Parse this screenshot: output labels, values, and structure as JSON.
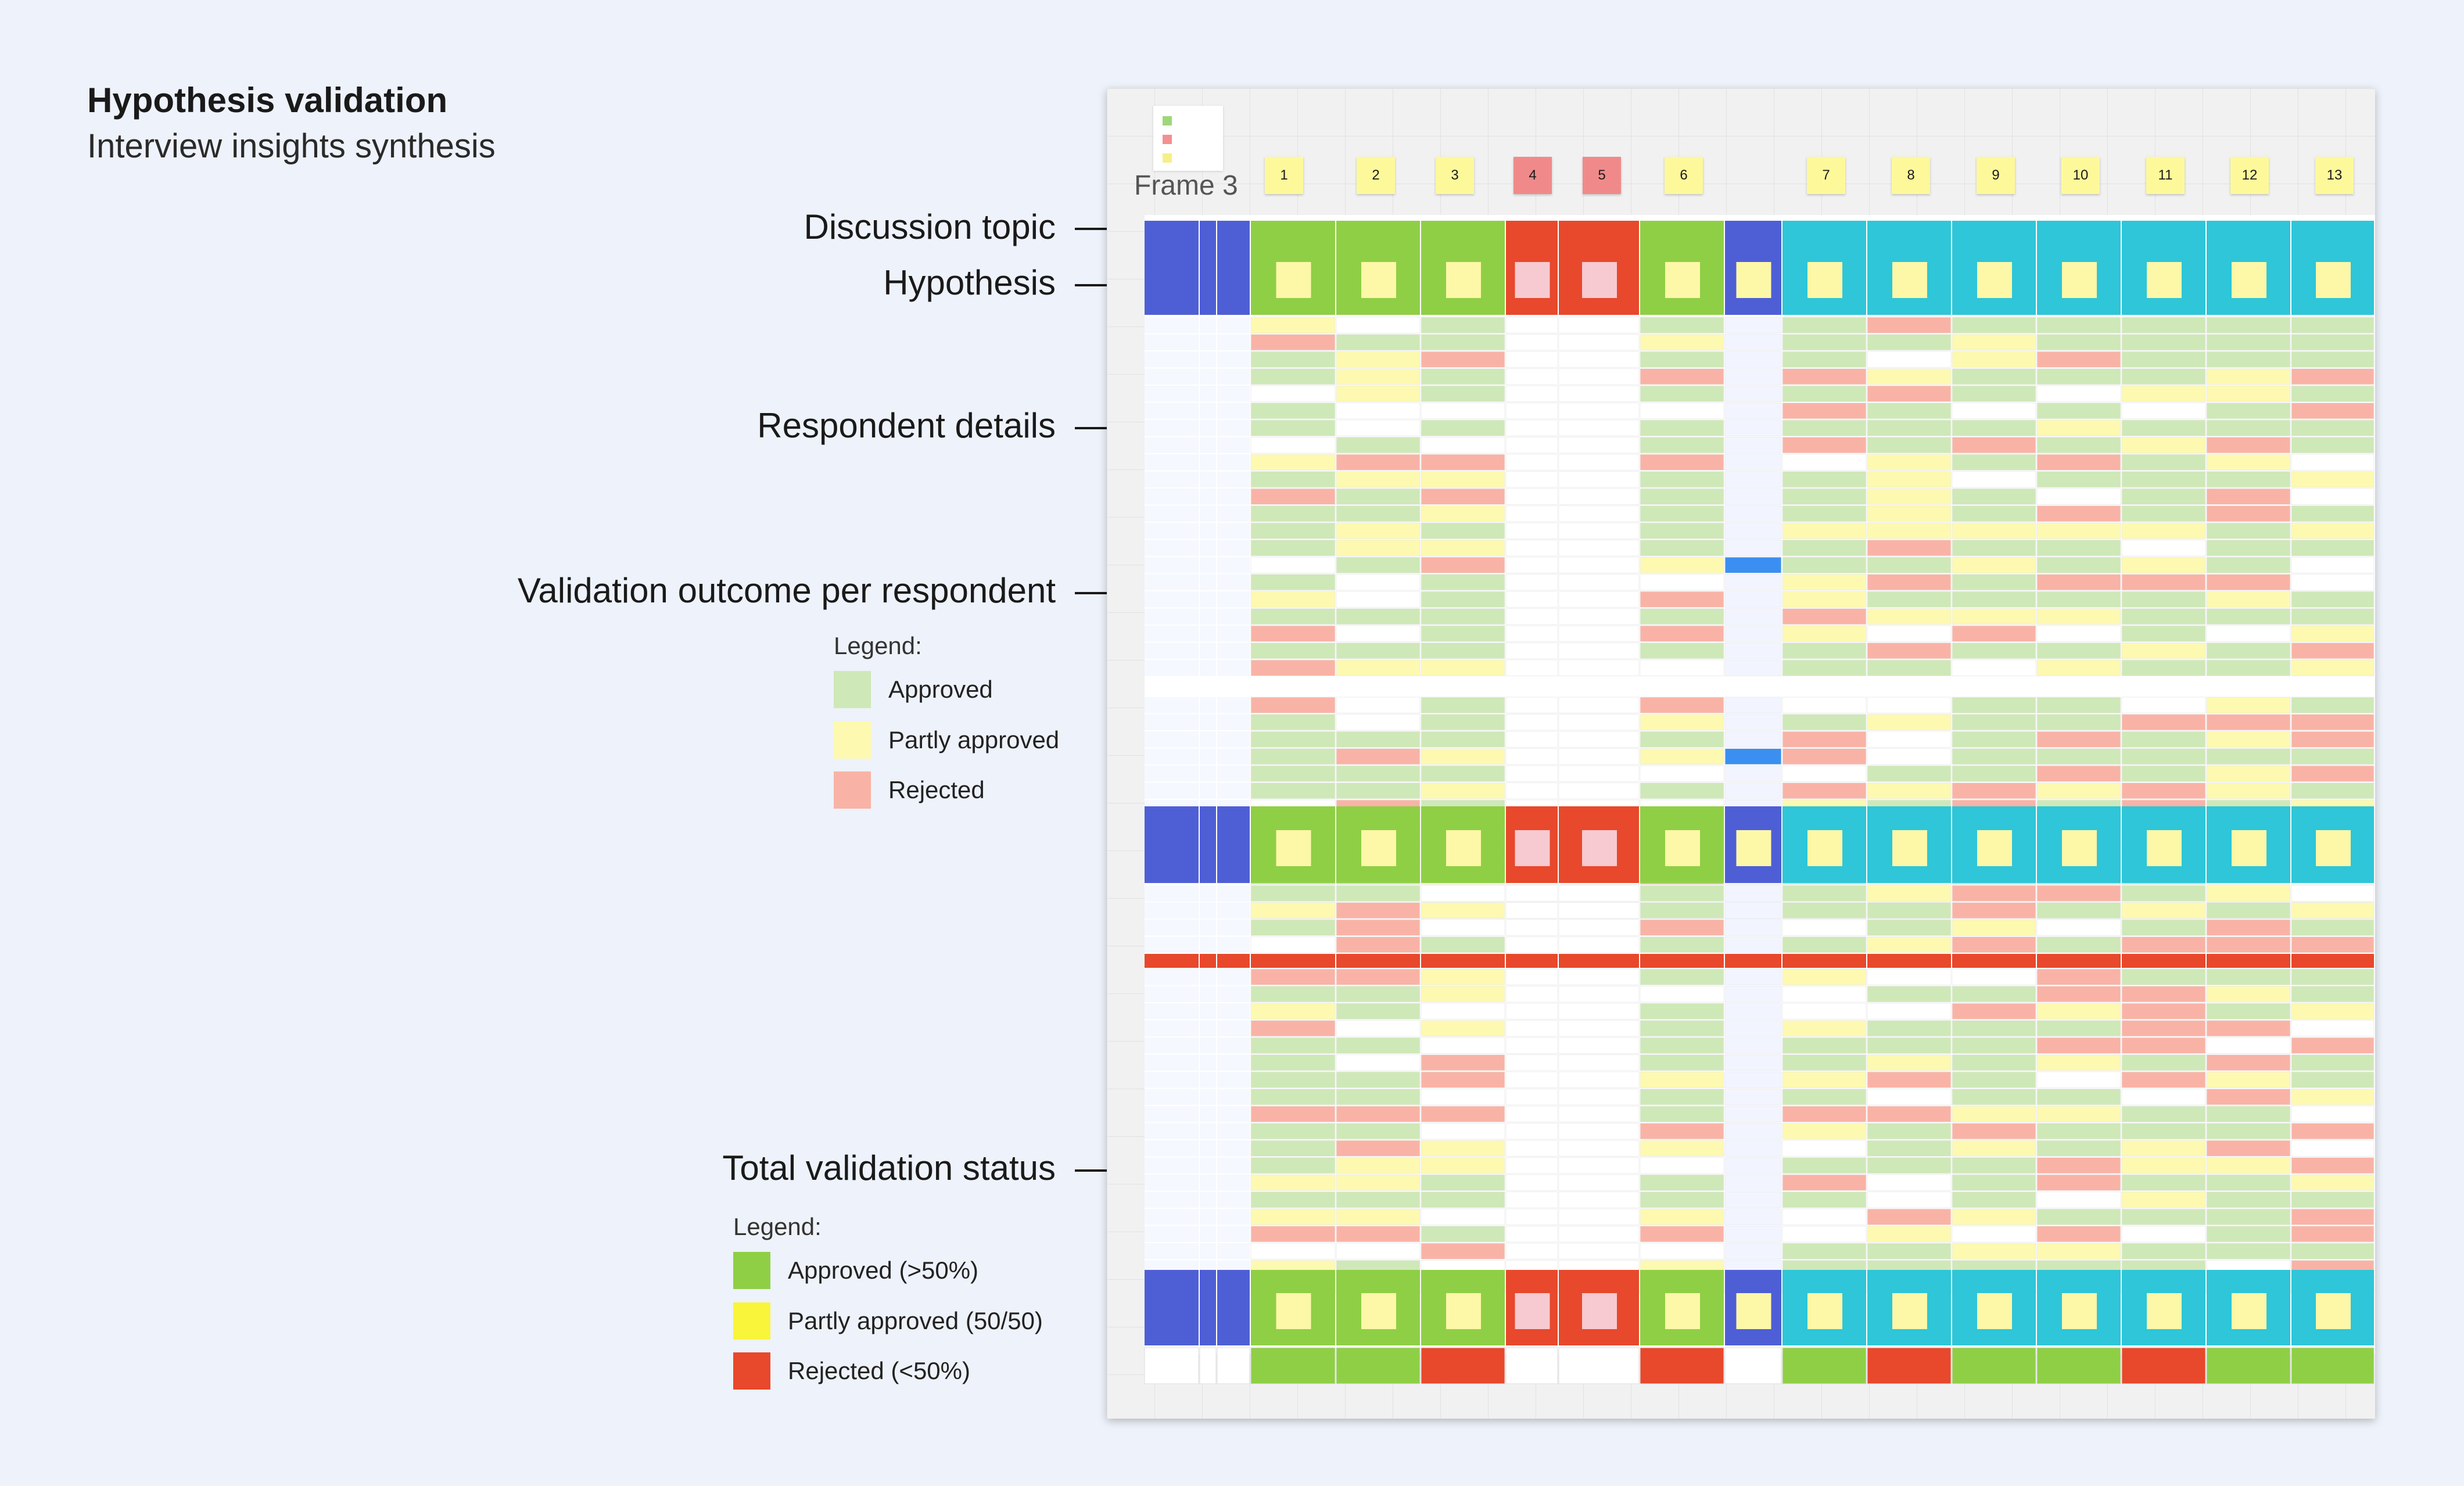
{
  "header": {
    "title": "Hypothesis validation",
    "subtitle": "Interview insights synthesis"
  },
  "annotations": [
    {
      "id": "discussion-topic",
      "label": "Discussion topic"
    },
    {
      "id": "hypothesis",
      "label": "Hypothesis"
    },
    {
      "id": "respondent-details",
      "label": "Respondent details"
    },
    {
      "id": "validation-outcome",
      "label": "Validation outcome per respondent"
    },
    {
      "id": "total-validation-status",
      "label": "Total validation status"
    }
  ],
  "legend_respondent": {
    "title": "Legend:",
    "items": [
      {
        "label": "Approved",
        "color": "#cfe8b8"
      },
      {
        "label": "Partly approved",
        "color": "#fdf9b0"
      },
      {
        "label": "Rejected",
        "color": "#f9b3a6"
      }
    ]
  },
  "legend_total": {
    "title": "Legend:",
    "items": [
      {
        "label": "Approved (>50%)",
        "color": "#8fcf45"
      },
      {
        "label": "Partly approved (50/50)",
        "color": "#f9f53a"
      },
      {
        "label": "Rejected (<50%)",
        "color": "#e8482b"
      }
    ]
  },
  "board": {
    "frame_label": "Frame 3",
    "column_numbers": [
      {
        "n": "1",
        "flag": "normal"
      },
      {
        "n": "2",
        "flag": "normal"
      },
      {
        "n": "3",
        "flag": "normal"
      },
      {
        "n": "4",
        "flag": "red"
      },
      {
        "n": "5",
        "flag": "red"
      },
      {
        "n": "6",
        "flag": "normal"
      },
      {
        "n": "7",
        "flag": "normal"
      },
      {
        "n": "8",
        "flag": "normal"
      },
      {
        "n": "9",
        "flag": "normal"
      },
      {
        "n": "10",
        "flag": "normal"
      },
      {
        "n": "11",
        "flag": "normal"
      },
      {
        "n": "12",
        "flag": "normal"
      },
      {
        "n": "13",
        "flag": "normal"
      }
    ],
    "total_status": [
      "approved",
      "approved",
      "rejected",
      "none",
      "none",
      "rejected",
      "approved",
      "rejected",
      "approved",
      "approved",
      "rejected",
      "approved",
      "approved"
    ]
  },
  "colors": {
    "approved": "#cfe8b8",
    "partly": "#fdf9b0",
    "rejected": "#f9b3a6",
    "empty": "#ffffff",
    "topic_green": "#8fcf45",
    "topic_red": "#e8482b",
    "topic_cyan": "#2ec6d8",
    "topic_blue": "#4e5fd6",
    "total_approved": "#8fcf45",
    "total_partly": "#f9f53a",
    "total_rejected": "#e8482b"
  }
}
